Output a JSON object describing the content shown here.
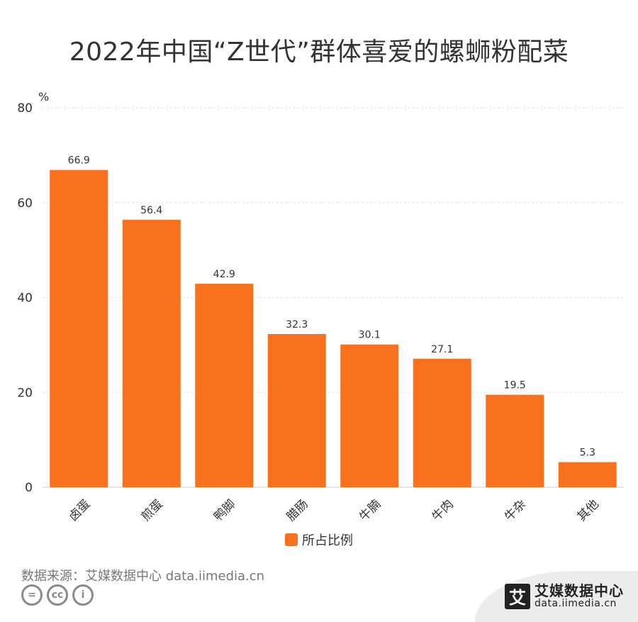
{
  "title": "2022年中国“Z世代”群体喜爱的螺蛳粉配菜",
  "source": "数据来源：艾媒数据中心 data.iimedia.cn",
  "brand": {
    "logo_char": "艾",
    "name": "艾媒数据中心",
    "url": "data.iimedia.cn"
  },
  "cc_icons": [
    "equal-sign-icon",
    "cc-icon",
    "person-icon"
  ],
  "cc_labels": {
    "equal": "=",
    "cc": "cc",
    "person": "i"
  },
  "colors": {
    "bar": "#FA711D",
    "grid": "#e3e3e3",
    "axis": "#cccccc",
    "text": "#333333"
  },
  "chart_data": {
    "type": "bar",
    "categories": [
      "卤蛋",
      "煎蛋",
      "鸭脚",
      "腊肠",
      "牛腩",
      "牛肉",
      "牛杂",
      "其他"
    ],
    "series": [
      {
        "name": "所占比例",
        "values": [
          66.9,
          56.4,
          42.9,
          32.3,
          30.1,
          27.1,
          19.5,
          5.3
        ]
      }
    ],
    "ylabel": "%",
    "ylim": [
      0,
      80
    ],
    "yticks": [
      0,
      20,
      40,
      60,
      80
    ],
    "grid": true,
    "legend": "bottom-center",
    "data_labels": true
  }
}
